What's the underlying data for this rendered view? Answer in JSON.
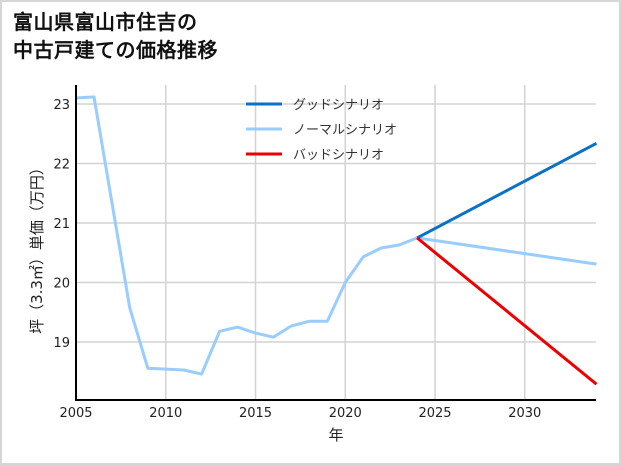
{
  "title_line1": "富山県富山市住吉の",
  "title_line2": "中古戸建ての価格推移",
  "chart_data": {
    "type": "line",
    "title": "富山県富山市住吉の中古戸建ての価格推移",
    "xlabel": "年",
    "ylabel": "坪（3.3㎡）単価（万円）",
    "xlim": [
      2005,
      2034
    ],
    "ylim": [
      18.05,
      23.2
    ],
    "xticks": [
      2005,
      2010,
      2015,
      2020,
      2025,
      2030
    ],
    "yticks": [
      19,
      20,
      21,
      22,
      23
    ],
    "grid": true,
    "legend_position": "upper center",
    "series": [
      {
        "name": "グッドシナリオ",
        "color": "#0a72c4",
        "x": [
          2024,
          2034
        ],
        "values": [
          20.75,
          22.34
        ]
      },
      {
        "name": "ノーマルシナリオ",
        "color": "#99ccff",
        "x": [
          2005,
          2006,
          2008,
          2009,
          2011,
          2012,
          2013,
          2014,
          2015,
          2016,
          2017,
          2018,
          2019,
          2020,
          2021,
          2022,
          2023,
          2024,
          2034
        ],
        "values": [
          23.1,
          23.12,
          19.57,
          18.56,
          18.53,
          18.46,
          19.18,
          19.25,
          19.15,
          19.08,
          19.27,
          19.35,
          19.35,
          20.0,
          20.43,
          20.58,
          20.63,
          20.75,
          20.31
        ]
      },
      {
        "name": "バッドシナリオ",
        "color": "#ee0000",
        "x": [
          2024,
          2034
        ],
        "values": [
          20.75,
          18.29
        ]
      }
    ]
  }
}
